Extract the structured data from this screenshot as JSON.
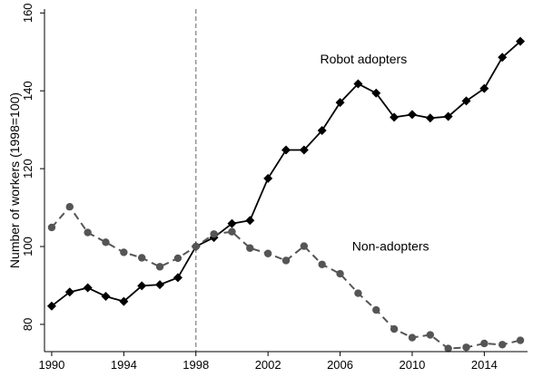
{
  "chart_data": {
    "type": "line",
    "title": "",
    "xlabel": "",
    "ylabel": "Number of workers (1998=100)",
    "xlim": [
      1989.6,
      2016.4
    ],
    "ylim": [
      73,
      161
    ],
    "x_ticks": [
      1990,
      1994,
      1998,
      2002,
      2006,
      2010,
      2014
    ],
    "y_ticks": [
      80,
      100,
      120,
      140,
      160
    ],
    "grid": false,
    "legend": "none",
    "reference_line": {
      "x": 1998,
      "style": "dashed",
      "color": "#888888"
    },
    "series": [
      {
        "name": "Robot adopters",
        "color": "#000000",
        "marker": "diamond",
        "line_style": "solid",
        "label_at": [
          2007.3,
          147
        ],
        "x": [
          1990,
          1991,
          1992,
          1993,
          1994,
          1995,
          1996,
          1997,
          1998,
          1999,
          2000,
          2001,
          2002,
          2003,
          2004,
          2005,
          2006,
          2007,
          2008,
          2009,
          2010,
          2011,
          2012,
          2013,
          2014,
          2015,
          2016
        ],
        "values": [
          84.7,
          88.3,
          89.4,
          87.2,
          85.9,
          89.9,
          90.2,
          92.0,
          100.0,
          102.3,
          105.9,
          106.7,
          117.5,
          124.8,
          124.8,
          129.8,
          137.0,
          141.8,
          139.4,
          133.2,
          133.9,
          133.0,
          133.4,
          137.4,
          140.6,
          148.6,
          152.7
        ]
      },
      {
        "name": "Non-adopters",
        "color": "#555555",
        "marker": "circle",
        "line_style": "dashed",
        "label_at": [
          2008.8,
          99
        ],
        "x": [
          1990,
          1991,
          1992,
          1993,
          1994,
          1995,
          1996,
          1997,
          1998,
          1999,
          2000,
          2001,
          2002,
          2003,
          2004,
          2005,
          2006,
          2007,
          2008,
          2009,
          2010,
          2011,
          2012,
          2013,
          2014,
          2015,
          2016
        ],
        "values": [
          104.9,
          110.2,
          103.6,
          101.1,
          98.5,
          97.1,
          94.8,
          97.0,
          100.0,
          103.2,
          103.8,
          99.6,
          98.2,
          96.4,
          100.1,
          95.4,
          93.0,
          88.0,
          83.7,
          78.8,
          76.6,
          77.3,
          73.8,
          74.1,
          75.1,
          74.8,
          75.9
        ]
      }
    ]
  }
}
